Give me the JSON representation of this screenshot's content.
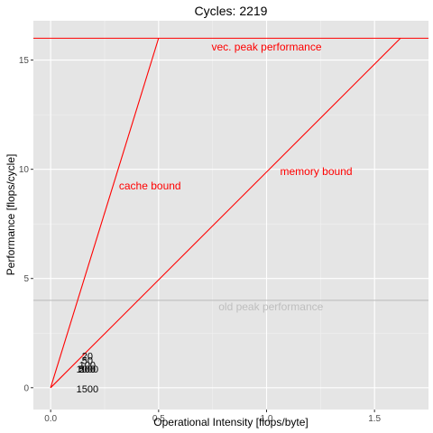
{
  "chart_data": {
    "type": "line",
    "title": "Cycles:  2219",
    "xlabel": "Operational Intensity [flops/byte]",
    "ylabel": "Performance [flops/cycle]",
    "xlim": [
      -0.08,
      1.75
    ],
    "ylim": [
      -1.0,
      16.8
    ],
    "x_ticks": [
      0.0,
      0.5,
      1.0,
      1.5
    ],
    "x_tick_labels": [
      "0.0",
      "0.5",
      "1.0",
      "1.5"
    ],
    "y_ticks": [
      0,
      5,
      10,
      15
    ],
    "y_tick_labels": [
      "0",
      "5",
      "10",
      "15"
    ],
    "grid": true,
    "panel_color": "#e5e5e5",
    "accent_color": "#ff0000",
    "old_peak_color": "#bebebe",
    "series": [
      {
        "points": [
          [
            0.0,
            0.0
          ],
          [
            0.5,
            16.0
          ]
        ],
        "color": "#ff0000"
      },
      {
        "points": [
          [
            0.0,
            0.0
          ],
          [
            1.62,
            16.0
          ]
        ],
        "color": "#ff0000"
      }
    ],
    "hlines": [
      {
        "y": 16.0,
        "color": "#ff0000"
      },
      {
        "y": 4.0,
        "color": "#bebebe"
      }
    ],
    "annotations": [
      {
        "text": "vec. peak performance",
        "x": 1.0,
        "y": 15.6,
        "color": "#ff0000"
      },
      {
        "text": "cache bound",
        "x": 0.46,
        "y": 9.25,
        "color": "#ff0000"
      },
      {
        "text": "memory bound",
        "x": 1.23,
        "y": 9.9,
        "color": "#ff0000"
      },
      {
        "text": "old peak performance",
        "x": 1.02,
        "y": 3.7,
        "color": "#bebebe"
      }
    ],
    "point_labels": [
      {
        "text": "20",
        "x": 0.17,
        "y": 1.45
      },
      {
        "text": "50",
        "x": 0.17,
        "y": 1.25
      },
      {
        "text": "100",
        "x": 0.17,
        "y": 1.05
      },
      {
        "text": "200",
        "x": 0.17,
        "y": 0.85
      },
      {
        "text": "500",
        "x": 0.17,
        "y": 0.85
      },
      {
        "text": "1000",
        "x": 0.17,
        "y": 0.85
      },
      {
        "text": "1500",
        "x": 0.17,
        "y": -0.05
      }
    ]
  }
}
